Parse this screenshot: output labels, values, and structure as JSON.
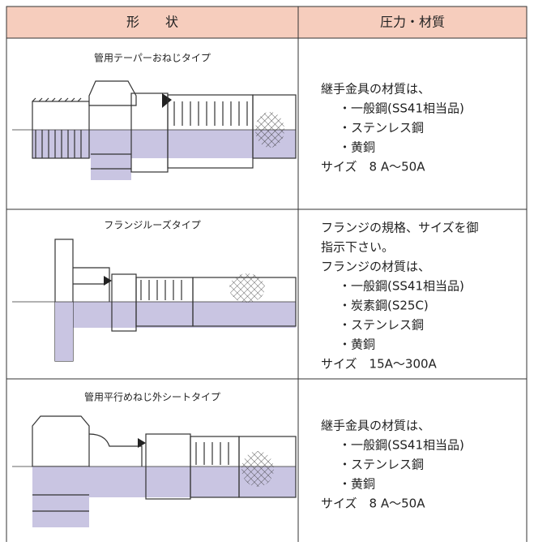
{
  "header": [
    "形　　状",
    "圧力・材質"
  ],
  "rows": [
    {
      "caption": "管用テーパーおねじタイプ",
      "lines": [
        "継手金具の材質は、",
        "・一般鋼(SS41相当品)",
        "・ステンレス鋼",
        "・黄銅",
        "サイズ　8 A～50A"
      ]
    },
    {
      "caption": "フランジルーズタイプ",
      "lines": [
        "フランジの規格、サイズを御",
        "指示下さい。",
        "フランジの材質は、",
        "・一般鋼(SS41相当品)",
        "・炭素鋼(S25C)",
        "・ステンレス鋼",
        "・黄銅",
        "サイズ　15A～300A"
      ]
    },
    {
      "caption": "管用平行めねじ外シートタイプ",
      "lines": [
        "継手金具の材質は、",
        "・一般鋼(SS41相当品)",
        "・ステンレス鋼",
        "・黄銅",
        "サイズ　8 A～50A"
      ]
    }
  ]
}
